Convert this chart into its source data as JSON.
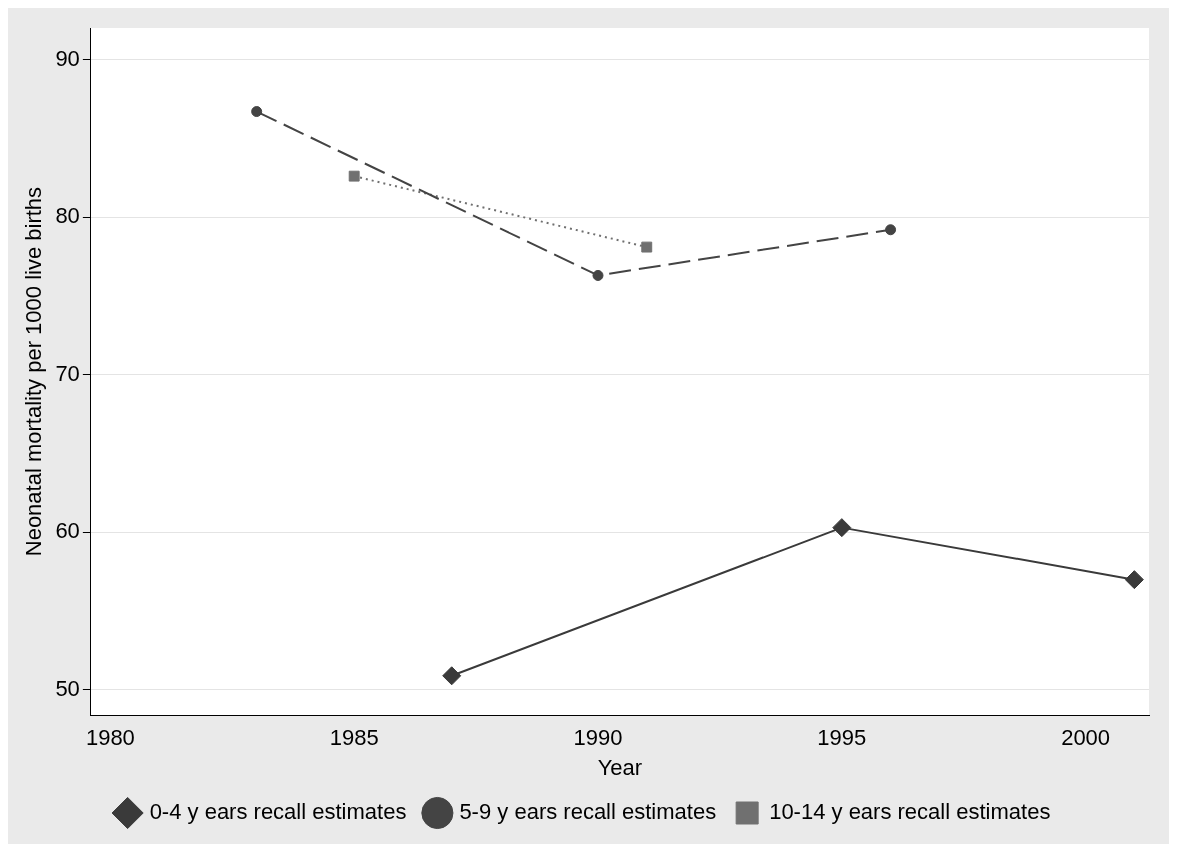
{
  "chart_data": {
    "type": "line",
    "xlabel": "Year",
    "ylabel": "Neonatal mortality per 1000 live births",
    "xlim": [
      1979.6,
      2001.3
    ],
    "xticks": [
      1980,
      1985,
      1990,
      1995,
      2000
    ],
    "ylim": [
      48.4,
      92
    ],
    "yticks": [
      50,
      60,
      70,
      80,
      90
    ],
    "grid": "y",
    "legend": "bottom",
    "series": [
      {
        "name": "0-4 y ears recall estimates",
        "color": "#3a3a3a",
        "x": [
          1987,
          1995,
          2001
        ],
        "values": [
          50.9,
          60.3,
          57.0
        ],
        "marker": "diamond",
        "line_style": "solid"
      },
      {
        "name": "5-9 y ears recall estimates",
        "color": "#444444",
        "x": [
          1983,
          1990,
          1996
        ],
        "values": [
          86.7,
          76.3,
          79.2
        ],
        "marker": "circle",
        "line_style": "dashed"
      },
      {
        "name": "10-14 y ears recall estimates",
        "color": "#707070",
        "x": [
          1985,
          1991
        ],
        "values": [
          82.6,
          78.1
        ],
        "marker": "square",
        "line_style": "dotted"
      }
    ]
  }
}
